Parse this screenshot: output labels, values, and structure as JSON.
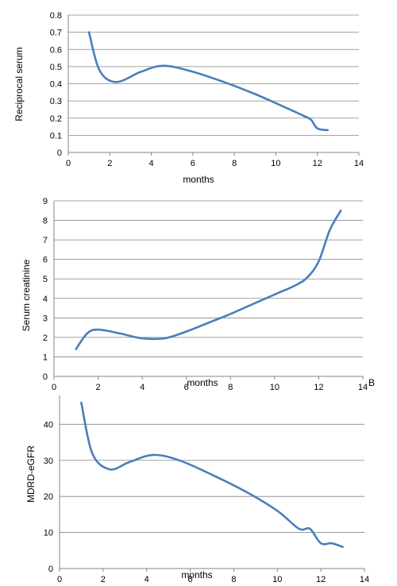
{
  "line_color": "#4a7ebb",
  "grid_color": "#868686",
  "chart_data": [
    {
      "type": "line",
      "title": "",
      "xlabel": "months",
      "ylabel": "Reciprocal serum",
      "xlim": [
        0,
        14
      ],
      "ylim": [
        0,
        0.8
      ],
      "xticks": [
        "0",
        "2",
        "4",
        "6",
        "8",
        "10",
        "12",
        "14"
      ],
      "yticks": [
        "0",
        "0.1",
        "0.2",
        "0.3",
        "0.4",
        "0.5",
        "0.6",
        "0.7",
        "0.8"
      ],
      "grid": true,
      "legend": "none",
      "series": [
        {
          "x": [
            1,
            1.5,
            2.3,
            3.5,
            4.6,
            6,
            7.5,
            9,
            10.5,
            11.4,
            11.7,
            12,
            12.5
          ],
          "y": [
            0.7,
            0.48,
            0.41,
            0.47,
            0.505,
            0.47,
            0.41,
            0.34,
            0.26,
            0.21,
            0.19,
            0.14,
            0.13
          ]
        }
      ]
    },
    {
      "type": "line",
      "title": "",
      "xlabel": "months",
      "ylabel": "Serum creatinine",
      "annotation": "B",
      "xlim": [
        0,
        14
      ],
      "ylim": [
        0,
        9
      ],
      "xticks": [
        "0",
        "2",
        "4",
        "6",
        "8",
        "10",
        "12",
        "14"
      ],
      "yticks": [
        "0",
        "1",
        "2",
        "3",
        "4",
        "5",
        "6",
        "7",
        "8",
        "9"
      ],
      "grid": true,
      "legend": "none",
      "series": [
        {
          "x": [
            1,
            1.5,
            2,
            3,
            4,
            5,
            6,
            7,
            8,
            9,
            10,
            11,
            11.5,
            12,
            12.5,
            13
          ],
          "y": [
            1.4,
            2.2,
            2.4,
            2.2,
            1.95,
            1.95,
            2.3,
            2.75,
            3.2,
            3.7,
            4.2,
            4.7,
            5.1,
            5.9,
            7.5,
            8.5
          ]
        }
      ]
    },
    {
      "type": "line",
      "title": "",
      "xlabel": "months",
      "ylabel": "MDRD-eGFR",
      "xlim": [
        0,
        14
      ],
      "ylim": [
        0,
        48
      ],
      "xticks": [
        "0",
        "2",
        "4",
        "6",
        "8",
        "10",
        "12",
        "14"
      ],
      "yticks": [
        "0",
        "10",
        "20",
        "30",
        "40"
      ],
      "grid": true,
      "legend": "none",
      "series": [
        {
          "x": [
            1,
            1.5,
            2.3,
            3.2,
            4.3,
            5.5,
            7,
            8.5,
            10,
            11,
            11.5,
            12,
            12.5,
            13
          ],
          "y": [
            46,
            32,
            27.5,
            29.5,
            31.5,
            30,
            26,
            21.5,
            16,
            11,
            11,
            7,
            7,
            6
          ]
        }
      ]
    }
  ]
}
